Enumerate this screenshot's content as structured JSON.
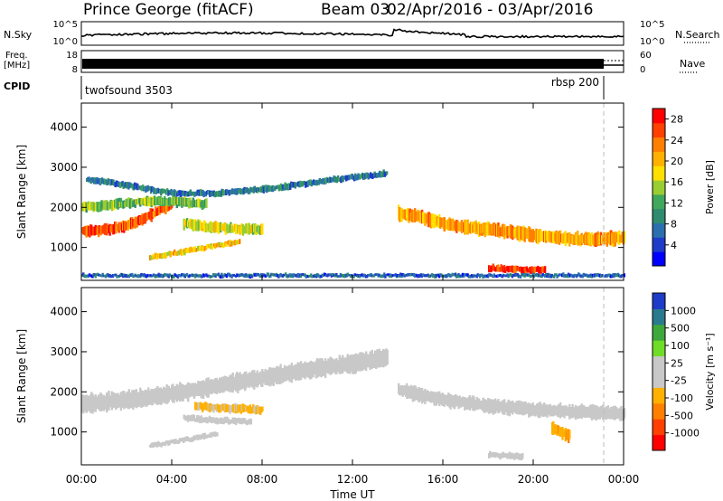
{
  "header": {
    "station": "Prince George (fitACF)",
    "beam": "Beam 03",
    "date_range": "02/Apr/2016 - 03/Apr/2016"
  },
  "strips": {
    "noise": {
      "left_label": "N.Sky",
      "left_ticks": [
        "10^5",
        "10^0"
      ],
      "right_label": "N.Search",
      "right_ticks": [
        "10^5",
        "10^0"
      ]
    },
    "freq": {
      "left_label_1": "Freq.",
      "left_label_2": "[MHz]",
      "left_ticks": [
        "18",
        "8"
      ],
      "right_label": "Nave",
      "right_ticks": [
        "60",
        "0"
      ]
    },
    "cpid": {
      "label": "CPID",
      "program_1": "twofsound 3503",
      "program_2": "rbsp 200"
    }
  },
  "chart_data": [
    {
      "type": "heatmap",
      "title": "",
      "xlabel": "",
      "ylabel": "Slant Range [km]",
      "x_ticks": [
        "00:00",
        "04:00",
        "08:00",
        "12:00",
        "16:00",
        "20:00",
        "00:00"
      ],
      "xlim_hours": [
        0,
        24
      ],
      "y_ticks": [
        "1000",
        "2000",
        "3000",
        "4000"
      ],
      "ylim_km": [
        180,
        4600
      ],
      "colorbar": {
        "label": "Power [dB]",
        "ticks": [
          "4",
          "8",
          "12",
          "16",
          "20",
          "24",
          "28"
        ],
        "range": [
          0,
          30
        ],
        "colors": [
          "#0000ff",
          "#1e3cc8",
          "#2a6fae",
          "#2e8b6e",
          "#3fa85a",
          "#9acd32",
          "#ffe000",
          "#ffb000",
          "#ff8000",
          "#ff4000",
          "#ff0000"
        ]
      },
      "bands": [
        {
          "name": "a",
          "x": [
            0.0,
            0.5,
            1.0,
            1.5,
            2.0,
            2.5,
            3.0,
            3.5,
            4.0
          ],
          "y": [
            1400,
            1420,
            1450,
            1480,
            1550,
            1650,
            1800,
            1950,
            2100
          ],
          "width": 260,
          "value": 25
        },
        {
          "name": "b",
          "x": [
            0.0,
            1.0,
            2.0,
            3.0,
            4.0,
            5.0,
            5.5
          ],
          "y": [
            2000,
            2050,
            2100,
            2150,
            2150,
            2100,
            2080
          ],
          "width": 220,
          "value": 14
        },
        {
          "name": "c",
          "x": [
            4.5,
            5.5,
            6.5,
            7.5,
            8.0
          ],
          "y": [
            1600,
            1520,
            1480,
            1450,
            1450
          ],
          "width": 250,
          "value": 17
        },
        {
          "name": "d",
          "x": [
            3.0,
            4.0,
            5.0,
            6.0,
            7.0
          ],
          "y": [
            750,
            850,
            950,
            1050,
            1150
          ],
          "width": 120,
          "value": 19
        },
        {
          "name": "e",
          "x": [
            0.2,
            2.0,
            4.0,
            6.0,
            8.0,
            10.0,
            12.0,
            13.5
          ],
          "y": [
            2700,
            2550,
            2350,
            2350,
            2450,
            2600,
            2750,
            2850
          ],
          "width": 140,
          "value": 8
        },
        {
          "name": "f",
          "x": [
            14.0,
            15.0,
            16.0,
            17.0,
            18.0,
            19.0,
            20.0,
            21.0,
            22.0,
            23.0,
            24.0
          ],
          "y": [
            1850,
            1750,
            1600,
            1500,
            1450,
            1380,
            1300,
            1250,
            1200,
            1200,
            1250
          ],
          "width": 320,
          "value": 21
        },
        {
          "name": "g",
          "x": [
            18.0,
            19.0,
            20.0,
            20.5
          ],
          "y": [
            480,
            460,
            440,
            450
          ],
          "width": 160,
          "value": 27
        },
        {
          "name": "h",
          "x": [
            0.0,
            6.0,
            12.0,
            18.0,
            24.0
          ],
          "y": [
            300,
            300,
            300,
            300,
            300
          ],
          "width": 80,
          "value": 6
        }
      ]
    },
    {
      "type": "heatmap",
      "title": "",
      "xlabel": "Time UT",
      "ylabel": "Slant Range [km]",
      "x_ticks": [
        "00:00",
        "04:00",
        "08:00",
        "12:00",
        "16:00",
        "20:00",
        "00:00"
      ],
      "xlim_hours": [
        0,
        24
      ],
      "y_ticks": [
        "1000",
        "2000",
        "3000",
        "4000"
      ],
      "ylim_km": [
        180,
        4600
      ],
      "colorbar": {
        "label": "Velocity [m s⁻¹]",
        "ticks": [
          "1000",
          "500",
          "100",
          "25",
          "-25",
          "-100",
          "-500",
          "-1000"
        ],
        "range": [
          -1250,
          1250
        ],
        "colors": [
          "#ff0000",
          "#ff4000",
          "#ff8000",
          "#ffb000",
          "#c8c8c8",
          "#c8c8c8",
          "#6fdc28",
          "#3fa83a",
          "#2a7a8e",
          "#1e3cc8"
        ]
      },
      "bands": [
        {
          "name": "ground-scatter-1",
          "x": [
            0.0,
            2.0,
            4.0,
            6.0,
            8.0,
            10.0,
            12.0,
            13.5
          ],
          "y": [
            1700,
            1800,
            1950,
            2150,
            2350,
            2550,
            2700,
            2850
          ],
          "width": 420,
          "value": 0
        },
        {
          "name": "ground-scatter-2",
          "x": [
            14.0,
            16.0,
            18.0,
            20.0,
            22.0,
            24.0
          ],
          "y": [
            2050,
            1800,
            1650,
            1550,
            1500,
            1450
          ],
          "width": 330,
          "value": 0
        },
        {
          "name": "neg-vel",
          "x": [
            5.0,
            6.0,
            7.0,
            8.0
          ],
          "y": [
            1650,
            1600,
            1580,
            1550
          ],
          "width": 200,
          "value": -300
        },
        {
          "name": "pos-vel",
          "x": [
            4.5,
            5.5,
            6.5,
            7.5
          ],
          "y": [
            1350,
            1300,
            1280,
            1250
          ],
          "width": 150,
          "value": 150
        },
        {
          "name": "pos-vel-low",
          "x": [
            3.0,
            4.0,
            5.0,
            6.0
          ],
          "y": [
            650,
            750,
            850,
            950
          ],
          "width": 110,
          "value": 120
        },
        {
          "name": "neg-vel-late",
          "x": [
            20.8,
            21.2,
            21.6
          ],
          "y": [
            1100,
            1000,
            900
          ],
          "width": 300,
          "value": -400
        },
        {
          "name": "pos-vel-late",
          "x": [
            18.0,
            19.0,
            19.5
          ],
          "y": [
            420,
            400,
            400
          ],
          "width": 140,
          "value": 90
        }
      ]
    }
  ]
}
